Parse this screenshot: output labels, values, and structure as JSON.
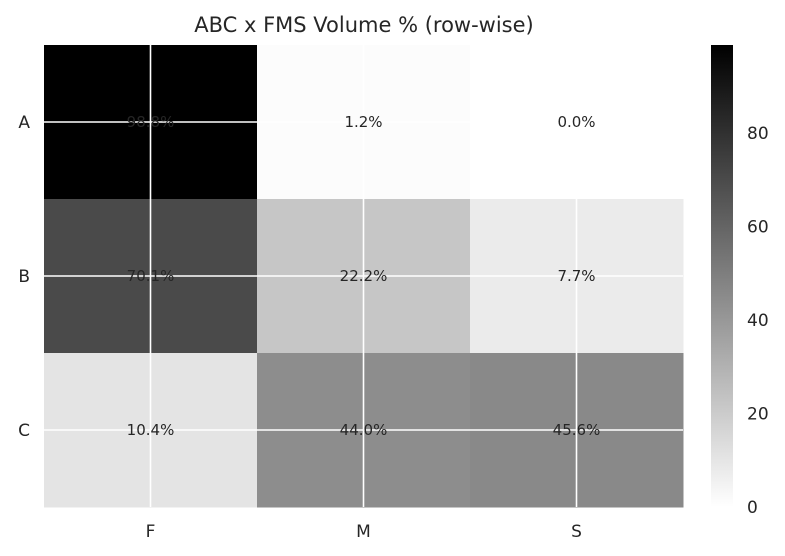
{
  "chart_data": {
    "type": "heatmap",
    "title": "ABC x FMS Volume % (row-wise)",
    "rows": [
      "A",
      "B",
      "C"
    ],
    "columns": [
      "F",
      "M",
      "S"
    ],
    "values": [
      [
        98.8,
        1.2,
        0.0
      ],
      [
        70.1,
        22.2,
        7.7
      ],
      [
        10.4,
        44.0,
        45.6
      ]
    ],
    "cell_labels": [
      [
        "98.8%",
        "1.2%",
        "0.0%"
      ],
      [
        "70.1%",
        "22.2%",
        "7.7%"
      ],
      [
        "10.4%",
        "44.0%",
        "45.6%"
      ]
    ],
    "colormap": "Greys",
    "color_range": [
      0,
      98.8
    ],
    "colorbar_ticks": [
      0,
      20,
      40,
      60,
      80
    ],
    "grid": true,
    "xlabel": "",
    "ylabel": ""
  }
}
